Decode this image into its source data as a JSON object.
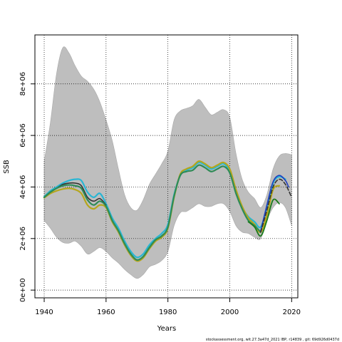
{
  "chart_data": {
    "type": "line",
    "xlabel": "Years",
    "ylabel": "SSB",
    "xlim": [
      1937,
      2022
    ],
    "ylim": [
      -300000,
      9900000
    ],
    "x_ticks": [
      1940,
      1960,
      1980,
      2000,
      2020
    ],
    "x_tick_labels": [
      "1940",
      "1960",
      "1980",
      "2000",
      "2020"
    ],
    "y_ticks": [
      0,
      2000000,
      4000000,
      6000000,
      8000000
    ],
    "y_tick_labels": [
      "0e+00",
      "2e+06",
      "4e+06",
      "6e+06",
      "8e+06"
    ],
    "grid": true,
    "colors": {
      "band": "#bebebe",
      "band_edge": "#a8a8a8",
      "grid": "#000000",
      "main": "#2e8b57",
      "cyan": "#29b6d4",
      "olive": "#b5a61c",
      "green": "#1a7a1a",
      "dark": "#333333",
      "blue": "#1f3fbf"
    },
    "band": {
      "x": [
        1940,
        1942,
        1944,
        1946,
        1948,
        1950,
        1952,
        1954,
        1956,
        1958,
        1960,
        1962,
        1964,
        1966,
        1968,
        1970,
        1972,
        1974,
        1976,
        1978,
        1980,
        1982,
        1984,
        1986,
        1988,
        1990,
        1992,
        1994,
        1996,
        1998,
        2000,
        2002,
        2004,
        2006,
        2008,
        2010,
        2012,
        2014,
        2016,
        2018,
        2020
      ],
      "upper": [
        5000000,
        6500000,
        8400000,
        9400000,
        9200000,
        8700000,
        8300000,
        8100000,
        7800000,
        7300000,
        6600000,
        5800000,
        4700000,
        3700000,
        3200000,
        3100000,
        3500000,
        4100000,
        4500000,
        4900000,
        5400000,
        6600000,
        6950000,
        7050000,
        7150000,
        7400000,
        7100000,
        6800000,
        6900000,
        7000000,
        6700000,
        5300000,
        4300000,
        3800000,
        3550000,
        3200000,
        3700000,
        4700000,
        5200000,
        5300000,
        5250000
      ],
      "lower": [
        2700000,
        2400000,
        2050000,
        1850000,
        1820000,
        1900000,
        1700000,
        1400000,
        1500000,
        1650000,
        1500000,
        1250000,
        1050000,
        800000,
        600000,
        450000,
        600000,
        900000,
        1000000,
        1150000,
        1500000,
        2500000,
        3000000,
        3050000,
        3200000,
        3350000,
        3250000,
        3250000,
        3350000,
        3350000,
        3050000,
        2500000,
        2250000,
        2200000,
        2050000,
        2000000,
        2700000,
        3200000,
        3400000,
        3200000,
        2500000
      ]
    },
    "series": [
      {
        "color": "cyan",
        "width": 2.2,
        "dash": "",
        "x": [
          1940,
          1942,
          1944,
          1946,
          1948,
          1950,
          1952,
          1954,
          1956,
          1958,
          1960,
          1962,
          1964,
          1966,
          1968,
          1970,
          1972,
          1974,
          1976,
          1978,
          1980,
          1982,
          1984,
          1986,
          1988,
          1990,
          1992,
          1994,
          1996,
          1998,
          2000,
          2002,
          2004,
          2006,
          2008,
          2010,
          2012,
          2014,
          2016,
          2018
        ],
        "y": [
          3620000,
          3850000,
          4000000,
          4150000,
          4250000,
          4300000,
          4250000,
          3800000,
          3600000,
          3750000,
          3350000,
          2800000,
          2400000,
          1900000,
          1500000,
          1270000,
          1400000,
          1750000,
          2000000,
          2200000,
          2550000,
          3700000,
          4450000,
          4650000,
          4750000,
          4950000,
          4850000,
          4700000,
          4800000,
          4900000,
          4600000,
          3800000,
          3200000,
          2850000,
          2650000,
          2450000,
          3200000,
          4150000,
          4400000,
          4300000
        ]
      },
      {
        "color": "olive",
        "width": 2.2,
        "dash": "",
        "x": [
          1940,
          1942,
          1944,
          1946,
          1948,
          1950,
          1952,
          1954,
          1956,
          1958,
          1960,
          1962,
          1964,
          1966,
          1968,
          1970,
          1972,
          1974,
          1976,
          1978,
          1980,
          1982,
          1984,
          1986,
          1988,
          1990,
          1992,
          1994,
          1996,
          1998,
          2000,
          2002,
          2004,
          2006,
          2008,
          2010,
          2012,
          2014,
          2016
        ],
        "y": [
          3580000,
          3750000,
          3850000,
          3920000,
          3950000,
          3900000,
          3750000,
          3300000,
          3150000,
          3300000,
          3200000,
          2650000,
          2250000,
          1750000,
          1350000,
          1130000,
          1250000,
          1600000,
          1900000,
          2050000,
          2400000,
          3600000,
          4500000,
          4700000,
          4800000,
          5000000,
          4900000,
          4750000,
          4850000,
          4950000,
          4700000,
          3900000,
          3250000,
          2800000,
          2550000,
          2250000,
          2900000,
          3900000,
          4050000
        ]
      },
      {
        "color": "dark",
        "width": 1.6,
        "dash": "",
        "x": [
          1940,
          1942,
          1944,
          1946,
          1948,
          1950,
          1952,
          1954,
          1956,
          1958,
          1960
        ],
        "y": [
          3600000,
          3800000,
          3950000,
          4100000,
          4150000,
          4150000,
          4050000,
          3600000,
          3450000,
          3550000,
          3300000
        ]
      },
      {
        "color": "main",
        "width": 2.2,
        "dash": "",
        "x": [
          1940,
          1942,
          1944,
          1946,
          1948,
          1950,
          1952,
          1954,
          1956,
          1958,
          1960,
          1962,
          1964,
          1966,
          1968,
          1970,
          1972,
          1974,
          1976,
          1978,
          1980,
          1982,
          1984,
          1986,
          1988,
          1990,
          1992,
          1994,
          1996,
          1998,
          2000,
          2002,
          2004,
          2006,
          2008,
          2010
        ],
        "y": [
          3600000,
          3800000,
          3950000,
          4050000,
          4080000,
          4050000,
          3950000,
          3500000,
          3300000,
          3450000,
          3250000,
          2700000,
          2300000,
          1800000,
          1400000,
          1170000,
          1300000,
          1650000,
          1950000,
          2100000,
          2450000,
          3650000,
          4450000,
          4600000,
          4650000,
          4850000,
          4750000,
          4600000,
          4700000,
          4800000,
          4550000,
          3750000,
          3150000,
          2700000,
          2500000,
          2250000
        ]
      },
      {
        "color": "green",
        "width": 1.8,
        "dash": "",
        "x": [
          2006,
          2008,
          2010,
          2012,
          2014,
          2016
        ],
        "y": [
          2650000,
          2450000,
          2100000,
          2700000,
          3500000,
          3350000
        ]
      },
      {
        "color": "blue",
        "width": 1.6,
        "dash": "",
        "x": [
          2010,
          2012,
          2014,
          2016,
          2018,
          2019
        ],
        "y": [
          2300000,
          3300000,
          4200000,
          4450000,
          4250000,
          4000000
        ]
      },
      {
        "color": "dark",
        "width": 1.6,
        "dash": "5,3",
        "x": [
          2010,
          2012,
          2014,
          2016,
          2018,
          2020
        ],
        "y": [
          2250000,
          3100000,
          4000000,
          4300000,
          4100000,
          3600000
        ]
      }
    ]
  },
  "footer": {
    "text": "stockassessment.org, wit.27.3a47d_2021 IBP, r14839 , git: 69d926d0437d"
  }
}
